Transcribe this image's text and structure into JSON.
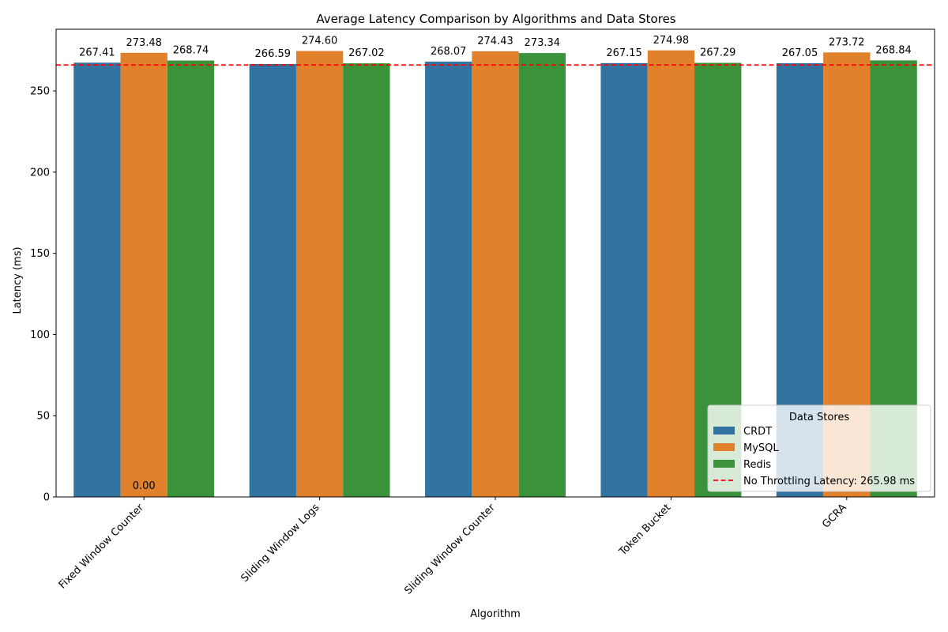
{
  "chart_data": {
    "type": "bar",
    "title": "Average Latency Comparison by Algorithms and Data Stores",
    "xlabel": "Algorithm",
    "ylabel": "Latency (ms)",
    "categories": [
      "Fixed Window Counter",
      "Sliding Window Logs",
      "Sliding Window Counter",
      "Token Bucket",
      "GCRA"
    ],
    "series": [
      {
        "name": "CRDT",
        "color": "#3274a1",
        "values": [
          267.41,
          266.59,
          268.07,
          267.15,
          267.05
        ]
      },
      {
        "name": "MySQL",
        "color": "#e1812c",
        "values": [
          273.48,
          274.6,
          274.43,
          274.98,
          273.72
        ]
      },
      {
        "name": "Redis",
        "color": "#3a923a",
        "values": [
          268.74,
          267.02,
          273.34,
          267.29,
          268.84
        ]
      }
    ],
    "value_labels": [
      [
        "267.41",
        "266.59",
        "268.07",
        "267.15",
        "267.05"
      ],
      [
        "273.48",
        "274.60",
        "274.43",
        "274.98",
        "273.72"
      ],
      [
        "268.74",
        "267.02",
        "273.34",
        "267.29",
        "268.84"
      ]
    ],
    "extra_labels": [
      "0.00"
    ],
    "ylim": [
      0,
      288
    ],
    "yticks": [
      0,
      50,
      100,
      150,
      200,
      250
    ],
    "reference_line": {
      "value": 265.98,
      "label": "No Throttling Latency: 265.98 ms",
      "color": "#ff0000"
    },
    "legend": {
      "title": "Data Stores",
      "placement": "lower-right"
    },
    "grid": false
  }
}
